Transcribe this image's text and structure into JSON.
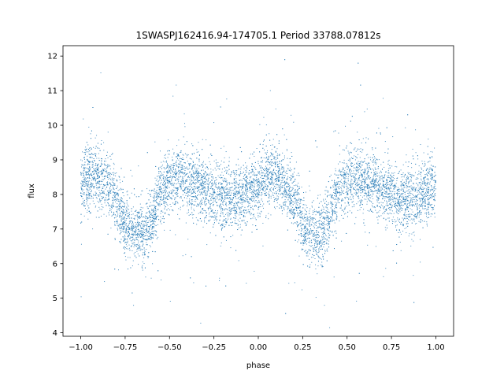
{
  "chart_data": {
    "type": "scatter",
    "title": "1SWASPJ162416.94-174705.1 Period 33788.07812s",
    "xlabel": "phase",
    "ylabel": "flux",
    "xlim": [
      -1.1,
      1.1
    ],
    "ylim": [
      3.9,
      12.3
    ],
    "xticks": [
      -1.0,
      -0.75,
      -0.5,
      -0.25,
      0.0,
      0.25,
      0.5,
      0.75,
      1.0
    ],
    "xtick_labels": [
      "−1.00",
      "−0.75",
      "−0.50",
      "−0.25",
      "0.00",
      "0.25",
      "0.50",
      "0.75",
      "1.00"
    ],
    "yticks": [
      4,
      5,
      6,
      7,
      8,
      9,
      10,
      11,
      12
    ],
    "ytick_labels": [
      "4",
      "5",
      "6",
      "7",
      "8",
      "9",
      "10",
      "11",
      "12"
    ],
    "grid": false,
    "marker_color": "#1f77b4",
    "series": [
      {
        "x": [
          -1.0,
          -0.95,
          -0.9,
          -0.85,
          -0.8,
          -0.75,
          -0.7,
          -0.65,
          -0.6,
          -0.55,
          -0.5,
          -0.45,
          -0.4,
          -0.35,
          -0.3,
          -0.25,
          -0.2,
          -0.15,
          -0.1,
          -0.05,
          0.0,
          0.05,
          0.1,
          0.15,
          0.2,
          0.25,
          0.3,
          0.35,
          0.4,
          0.45,
          0.5,
          0.55,
          0.6,
          0.65,
          0.7,
          0.75,
          0.8,
          0.85,
          0.9,
          0.95,
          1.0
        ],
        "y": [
          8.3,
          8.5,
          8.5,
          8.3,
          7.9,
          7.1,
          6.9,
          6.9,
          7.3,
          8.1,
          8.4,
          8.5,
          8.4,
          8.3,
          8.1,
          8.0,
          7.9,
          7.8,
          7.9,
          8.1,
          8.3,
          8.5,
          8.5,
          8.3,
          7.9,
          7.1,
          6.9,
          6.9,
          7.3,
          8.1,
          8.4,
          8.5,
          8.4,
          8.3,
          8.1,
          8.0,
          7.9,
          7.8,
          7.9,
          8.1,
          8.3
        ],
        "scatter_sd": 0.45
      }
    ]
  }
}
